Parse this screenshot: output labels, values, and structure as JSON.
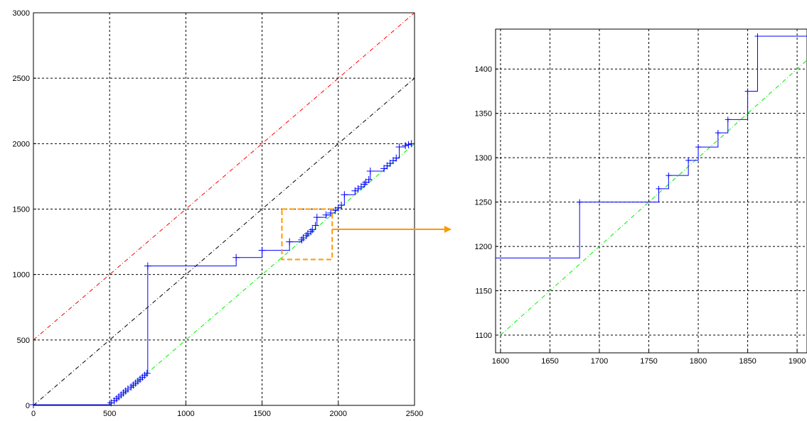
{
  "colors": {
    "step_line": "#0000ff",
    "ref_red": "#ff0000",
    "ref_black": "#000000",
    "ref_green": "#00ee00",
    "zoom_box": "#ff9900",
    "grid": "#000000"
  },
  "chart_data": [
    {
      "type": "line",
      "panel": "main",
      "xlim": [
        0,
        2500
      ],
      "ylim": [
        0,
        3000
      ],
      "x_ticks": [
        "0",
        "500",
        "1000",
        "1500",
        "2000",
        "2500"
      ],
      "y_ticks": [
        "0",
        "500",
        "1000",
        "1500",
        "2000",
        "2500",
        "3000"
      ],
      "x_tick_values": [
        0,
        500,
        1000,
        1500,
        2000,
        2500
      ],
      "y_tick_values": [
        0,
        500,
        1000,
        1500,
        2000,
        2500,
        3000
      ],
      "grid": true,
      "reference_lines": [
        {
          "color": "red",
          "style": "dash-dot",
          "x": [
            0,
            2500
          ],
          "y": [
            500,
            3000
          ]
        },
        {
          "color": "black",
          "style": "dash-dot",
          "x": [
            0,
            2500
          ],
          "y": [
            0,
            2500
          ]
        },
        {
          "color": "green",
          "style": "dash-dot",
          "x": [
            500,
            2500
          ],
          "y": [
            0,
            2000
          ]
        }
      ],
      "zoom_box": {
        "x": [
          1630,
          1960
        ],
        "y": [
          1115,
          1500
        ]
      },
      "series": [
        {
          "style": "step with + markers",
          "points": [
            [
              0,
              5
            ],
            [
              510,
              20
            ],
            [
              530,
              35
            ],
            [
              545,
              50
            ],
            [
              560,
              65
            ],
            [
              575,
              80
            ],
            [
              590,
              95
            ],
            [
              605,
              110
            ],
            [
              620,
              125
            ],
            [
              640,
              140
            ],
            [
              655,
              155
            ],
            [
              670,
              170
            ],
            [
              685,
              185
            ],
            [
              700,
              200
            ],
            [
              715,
              215
            ],
            [
              730,
              230
            ],
            [
              745,
              245
            ],
            [
              750,
              1065
            ],
            [
              1330,
              1130
            ],
            [
              1500,
              1185
            ],
            [
              1680,
              1250
            ],
            [
              1760,
              1265
            ],
            [
              1770,
              1280
            ],
            [
              1790,
              1297
            ],
            [
              1800,
              1312
            ],
            [
              1820,
              1328
            ],
            [
              1830,
              1343
            ],
            [
              1850,
              1375
            ],
            [
              1860,
              1437
            ],
            [
              1920,
              1455
            ],
            [
              1950,
              1470
            ],
            [
              1980,
              1490
            ],
            [
              2000,
              1510
            ],
            [
              2020,
              1530
            ],
            [
              2040,
              1610
            ],
            [
              2110,
              1640
            ],
            [
              2130,
              1655
            ],
            [
              2150,
              1670
            ],
            [
              2170,
              1690
            ],
            [
              2180,
              1705
            ],
            [
              2200,
              1725
            ],
            [
              2210,
              1790
            ],
            [
              2300,
              1810
            ],
            [
              2320,
              1830
            ],
            [
              2340,
              1850
            ],
            [
              2360,
              1870
            ],
            [
              2380,
              1890
            ],
            [
              2400,
              1975
            ],
            [
              2440,
              1985
            ],
            [
              2460,
              1992
            ],
            [
              2480,
              2000
            ]
          ]
        }
      ]
    },
    {
      "type": "line",
      "panel": "zoom",
      "xlim": [
        1595,
        1910
      ],
      "ylim": [
        1080,
        1445
      ],
      "x_ticks": [
        "1600",
        "1650",
        "1700",
        "1750",
        "1800",
        "1850",
        "1900"
      ],
      "y_ticks": [
        "1100",
        "1150",
        "1200",
        "1250",
        "1300",
        "1350",
        "1400"
      ],
      "x_tick_values": [
        1600,
        1650,
        1700,
        1750,
        1800,
        1850,
        1900
      ],
      "y_tick_values": [
        1100,
        1150,
        1200,
        1250,
        1300,
        1350,
        1400
      ],
      "grid": true,
      "reference_lines": [
        {
          "color": "green",
          "style": "dash-dot",
          "x": [
            1600,
            1910
          ],
          "y": [
            1100,
            1410
          ]
        }
      ],
      "series": [
        {
          "style": "step with + markers",
          "points": [
            [
              1595,
              1187
            ],
            [
              1680,
              1250
            ],
            [
              1760,
              1265
            ],
            [
              1770,
              1280
            ],
            [
              1790,
              1297
            ],
            [
              1800,
              1312
            ],
            [
              1820,
              1328
            ],
            [
              1830,
              1343
            ],
            [
              1850,
              1375
            ],
            [
              1860,
              1437
            ],
            [
              1910,
              1437
            ]
          ]
        }
      ]
    }
  ]
}
